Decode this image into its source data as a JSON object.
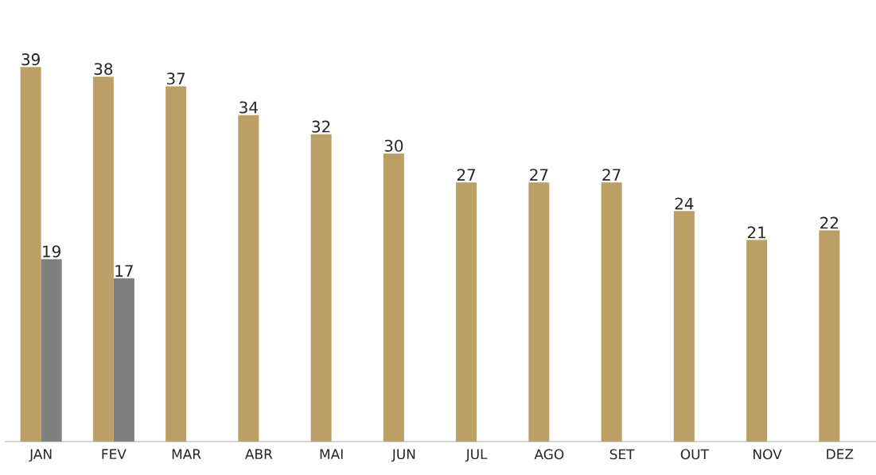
{
  "chart_data": {
    "type": "bar",
    "categories": [
      "JAN",
      "FEV",
      "MAR",
      "ABR",
      "MAI",
      "JUN",
      "JUL",
      "AGO",
      "SET",
      "OUT",
      "NOV",
      "DEZ"
    ],
    "series": [
      {
        "color": "#bc9f67",
        "values": [
          39,
          38,
          37,
          34,
          32,
          30,
          27,
          27,
          27,
          24,
          21,
          22
        ]
      },
      {
        "color": "#7f7f7f",
        "values": [
          19,
          17,
          null,
          null,
          null,
          null,
          null,
          null,
          null,
          null,
          null,
          null
        ]
      }
    ],
    "data_labels": true
  }
}
